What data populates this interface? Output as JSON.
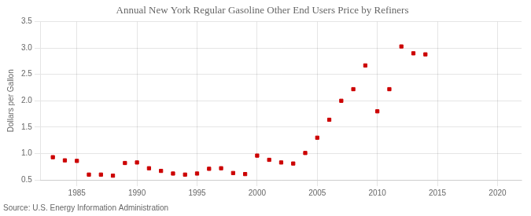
{
  "chart_data": {
    "type": "scatter",
    "title": "Annual New York Regular Gasoline Other End Users Price by Refiners",
    "ylabel": "Dollars per Gallon",
    "source": "Source: U.S. Energy Information Administration",
    "x": [
      1983,
      1984,
      1985,
      1986,
      1987,
      1988,
      1989,
      1990,
      1991,
      1992,
      1993,
      1994,
      1995,
      1996,
      1997,
      1998,
      1999,
      2000,
      2001,
      2002,
      2003,
      2004,
      2005,
      2006,
      2007,
      2008,
      2009,
      2010,
      2011,
      2012,
      2013,
      2014
    ],
    "values": [
      0.93,
      0.87,
      0.86,
      0.6,
      0.6,
      0.58,
      0.82,
      0.83,
      0.72,
      0.67,
      0.62,
      0.6,
      0.62,
      0.71,
      0.72,
      0.63,
      0.61,
      0.96,
      0.88,
      0.83,
      0.81,
      1.01,
      1.3,
      1.64,
      2.0,
      2.22,
      2.67,
      1.8,
      2.22,
      3.03,
      2.9,
      2.88
    ],
    "color": "#cc0000",
    "marker": "square",
    "xlim": [
      1982,
      2022
    ],
    "ylim": [
      0.5,
      3.5
    ],
    "xticks": [
      1985,
      1990,
      1995,
      2000,
      2005,
      2010,
      2015,
      2020
    ],
    "yticks": [
      0.5,
      {
        "value": 1.0,
        "label": "1.0"
      },
      1.5,
      {
        "value": 2.0,
        "label": "2.0"
      },
      2.5,
      {
        "value": 3.0,
        "label": "3.0"
      },
      3.5
    ],
    "grid": true
  }
}
